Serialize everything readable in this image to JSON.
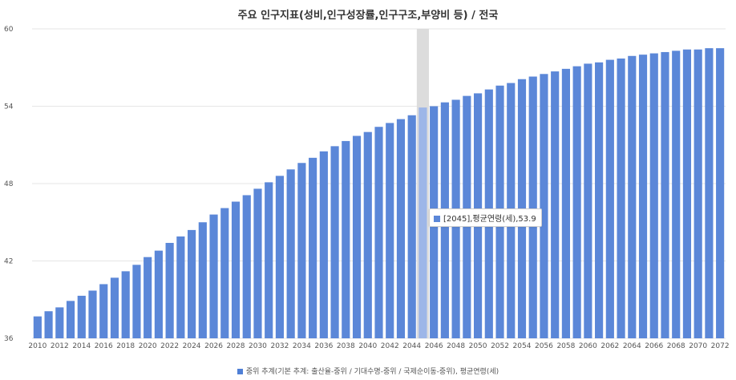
{
  "chart_data": {
    "type": "bar",
    "title": "주요 인구지표(성비,인구성장률,인구구조,부양비 등) / 전국",
    "xlabel": "",
    "ylabel": "",
    "ylim": [
      36,
      60
    ],
    "yticks": [
      36,
      42,
      48,
      54,
      60
    ],
    "grid": true,
    "legend_position": "bottom",
    "series": [
      {
        "name": "중위 추계(기본 추계: 출산율-중위 / 기대수명-중위 / 국제순이동-중위), 평균연령(세)",
        "color": "#5b87d8",
        "categories": [
          "2010",
          "2011",
          "2012",
          "2013",
          "2014",
          "2015",
          "2016",
          "2017",
          "2018",
          "2019",
          "2020",
          "2021",
          "2022",
          "2023",
          "2024",
          "2025",
          "2026",
          "2027",
          "2028",
          "2029",
          "2030",
          "2031",
          "2032",
          "2033",
          "2034",
          "2035",
          "2036",
          "2037",
          "2038",
          "2039",
          "2040",
          "2041",
          "2042",
          "2043",
          "2044",
          "2045",
          "2046",
          "2047",
          "2048",
          "2049",
          "2050",
          "2051",
          "2052",
          "2053",
          "2054",
          "2055",
          "2056",
          "2057",
          "2058",
          "2059",
          "2060",
          "2061",
          "2062",
          "2063",
          "2064",
          "2065",
          "2066",
          "2067",
          "2068",
          "2069",
          "2070",
          "2071",
          "2072"
        ],
        "values": [
          37.7,
          38.1,
          38.4,
          38.9,
          39.3,
          39.7,
          40.2,
          40.7,
          41.2,
          41.7,
          42.3,
          42.8,
          43.4,
          43.9,
          44.4,
          45.0,
          45.6,
          46.1,
          46.6,
          47.1,
          47.6,
          48.1,
          48.6,
          49.1,
          49.6,
          50.0,
          50.5,
          50.9,
          51.3,
          51.7,
          52.0,
          52.4,
          52.7,
          53.0,
          53.3,
          53.9,
          54.0,
          54.3,
          54.5,
          54.8,
          55.0,
          55.3,
          55.6,
          55.8,
          56.1,
          56.3,
          56.5,
          56.7,
          56.9,
          57.1,
          57.3,
          57.4,
          57.6,
          57.7,
          57.9,
          58.0,
          58.1,
          58.2,
          58.3,
          58.4,
          58.4,
          58.5,
          58.5
        ]
      }
    ],
    "x_tick_labels": [
      "2010",
      "2012",
      "2014",
      "2016",
      "2018",
      "2020",
      "2022",
      "2024",
      "2026",
      "2028",
      "2030",
      "2032",
      "2034",
      "2036",
      "2038",
      "2040",
      "2042",
      "2044",
      "2046",
      "2048",
      "2050",
      "2052",
      "2054",
      "2056",
      "2058",
      "2060",
      "2062",
      "2064",
      "2066",
      "2068",
      "2070",
      "2072"
    ],
    "highlight": {
      "category": "2045",
      "tooltip": "[2045],평균연령(세),53.9"
    }
  },
  "colors": {
    "bar": "#5b87d8",
    "bar_highlight": "#9db6e8",
    "hover_band": "#dcdcdc",
    "gridline": "#e6e6e6"
  }
}
